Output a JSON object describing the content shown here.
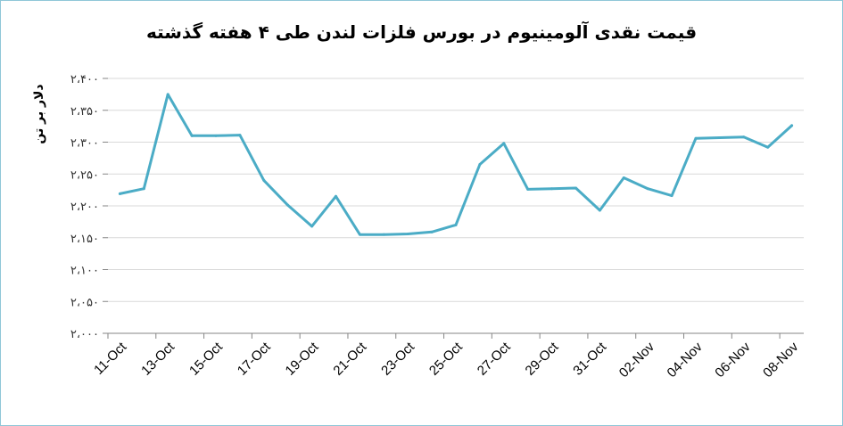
{
  "chart_data": {
    "type": "line",
    "title": "قیمت نقدی آلومینیوم در بورس فلزات لندن طی ۴ هفته گذشته",
    "ylabel": "دلار بر تن",
    "xlabel": "",
    "ylim": [
      2000,
      2400
    ],
    "yticks": [
      2000,
      2050,
      2100,
      2150,
      2200,
      2250,
      2300,
      2350,
      2400
    ],
    "ytick_labels": [
      "۲،۰۰۰",
      "۲،۰۵۰",
      "۲،۱۰۰",
      "۲،۱۵۰",
      "۲،۲۰۰",
      "۲،۲۵۰",
      "۲،۳۰۰",
      "۲،۳۵۰",
      "۲،۴۰۰"
    ],
    "grid": true,
    "legend": "none",
    "color": "#4bacc6",
    "x_labels": [
      "11-Oct",
      "13-Oct",
      "15-Oct",
      "17-Oct",
      "19-Oct",
      "21-Oct",
      "23-Oct",
      "25-Oct",
      "27-Oct",
      "29-Oct",
      "31-Oct",
      "02-Nov",
      "04-Nov",
      "06-Nov",
      "08-Nov"
    ],
    "x": [
      "11-Oct",
      "12-Oct",
      "13-Oct",
      "14-Oct",
      "15-Oct",
      "16-Oct",
      "17-Oct",
      "18-Oct",
      "19-Oct",
      "20-Oct",
      "21-Oct",
      "22-Oct",
      "23-Oct",
      "24-Oct",
      "25-Oct",
      "26-Oct",
      "27-Oct",
      "28-Oct",
      "29-Oct",
      "30-Oct",
      "31-Oct",
      "01-Nov",
      "02-Nov",
      "03-Nov",
      "04-Nov",
      "05-Nov",
      "06-Nov",
      "07-Nov",
      "08-Nov"
    ],
    "values": [
      2219,
      2227,
      2375,
      2310,
      2310,
      2311,
      2240,
      2201,
      2168,
      2215,
      2155,
      2155,
      2156,
      2159,
      2170,
      2265,
      2298,
      2226,
      2227,
      2228,
      2193,
      2244,
      2227,
      2216,
      2306,
      2307,
      2308,
      2292,
      2326
    ]
  }
}
